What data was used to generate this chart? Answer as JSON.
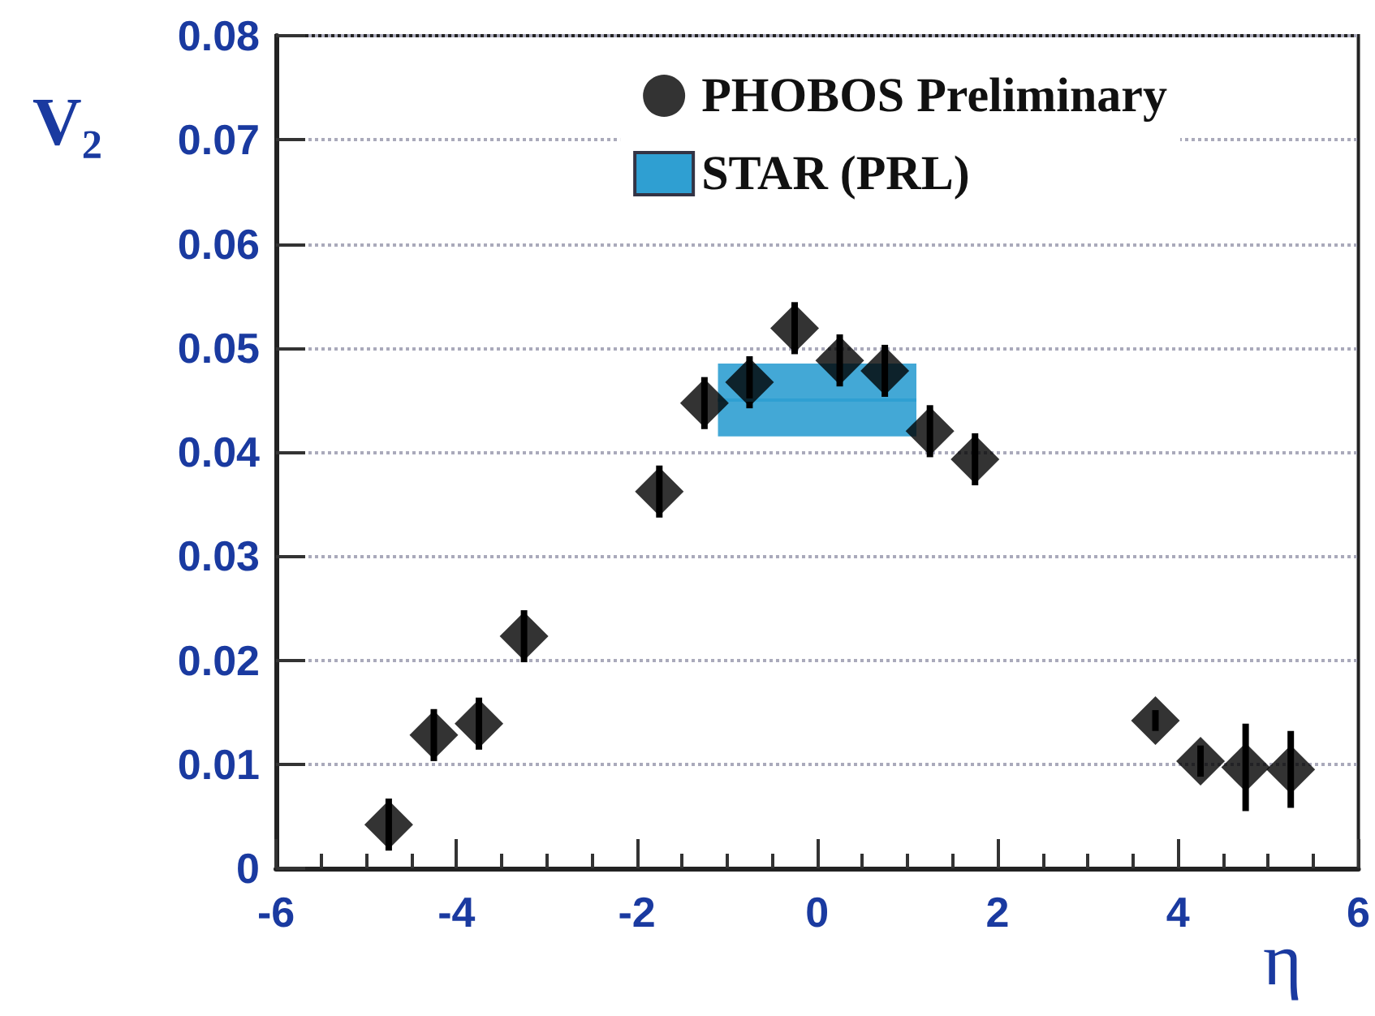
{
  "chart_data": {
    "type": "scatter",
    "xlabel": "η",
    "ylabel": "V₂",
    "xlim": [
      -6,
      6
    ],
    "xticks": [
      -6,
      -4,
      -2,
      0,
      2,
      4,
      6
    ],
    "ylim": [
      0,
      0.08
    ],
    "yticks": [
      0,
      0.01,
      0.02,
      0.03,
      0.04,
      0.05,
      0.06,
      0.07,
      0.08
    ],
    "grid": "y",
    "legend": "top right",
    "series": [
      {
        "name": "PHOBOS Preliminary",
        "type": "scatter",
        "marker": "diamond",
        "color": "#000000",
        "x": [
          -4.75,
          -4.25,
          -3.75,
          -3.25,
          -1.75,
          -1.25,
          -0.75,
          -0.25,
          0.25,
          0.75,
          1.25,
          1.75,
          3.75,
          4.25,
          4.75,
          5.25
        ],
        "values": [
          0.0042,
          0.0128,
          0.0139,
          0.0223,
          0.0362,
          0.0447,
          0.0467,
          0.0519,
          0.0488,
          0.0478,
          0.042,
          0.0393,
          0.0142,
          0.0103,
          0.0097,
          0.0095
        ],
        "errors": [
          0.0025,
          0.0025,
          0.0025,
          0.0025,
          0.0025,
          0.0025,
          0.0025,
          0.0025,
          0.0025,
          0.0025,
          0.0025,
          0.0025,
          0.001,
          0.0015,
          0.0042,
          0.0037
        ]
      },
      {
        "name": "STAR (PRL)",
        "type": "line",
        "color": "#2f9fd2",
        "x": [
          -1.1,
          1.1
        ],
        "values": [
          0.045,
          0.045
        ],
        "lower": [
          0.0415,
          0.0415
        ],
        "upper": [
          0.0485,
          0.0485
        ]
      }
    ]
  }
}
